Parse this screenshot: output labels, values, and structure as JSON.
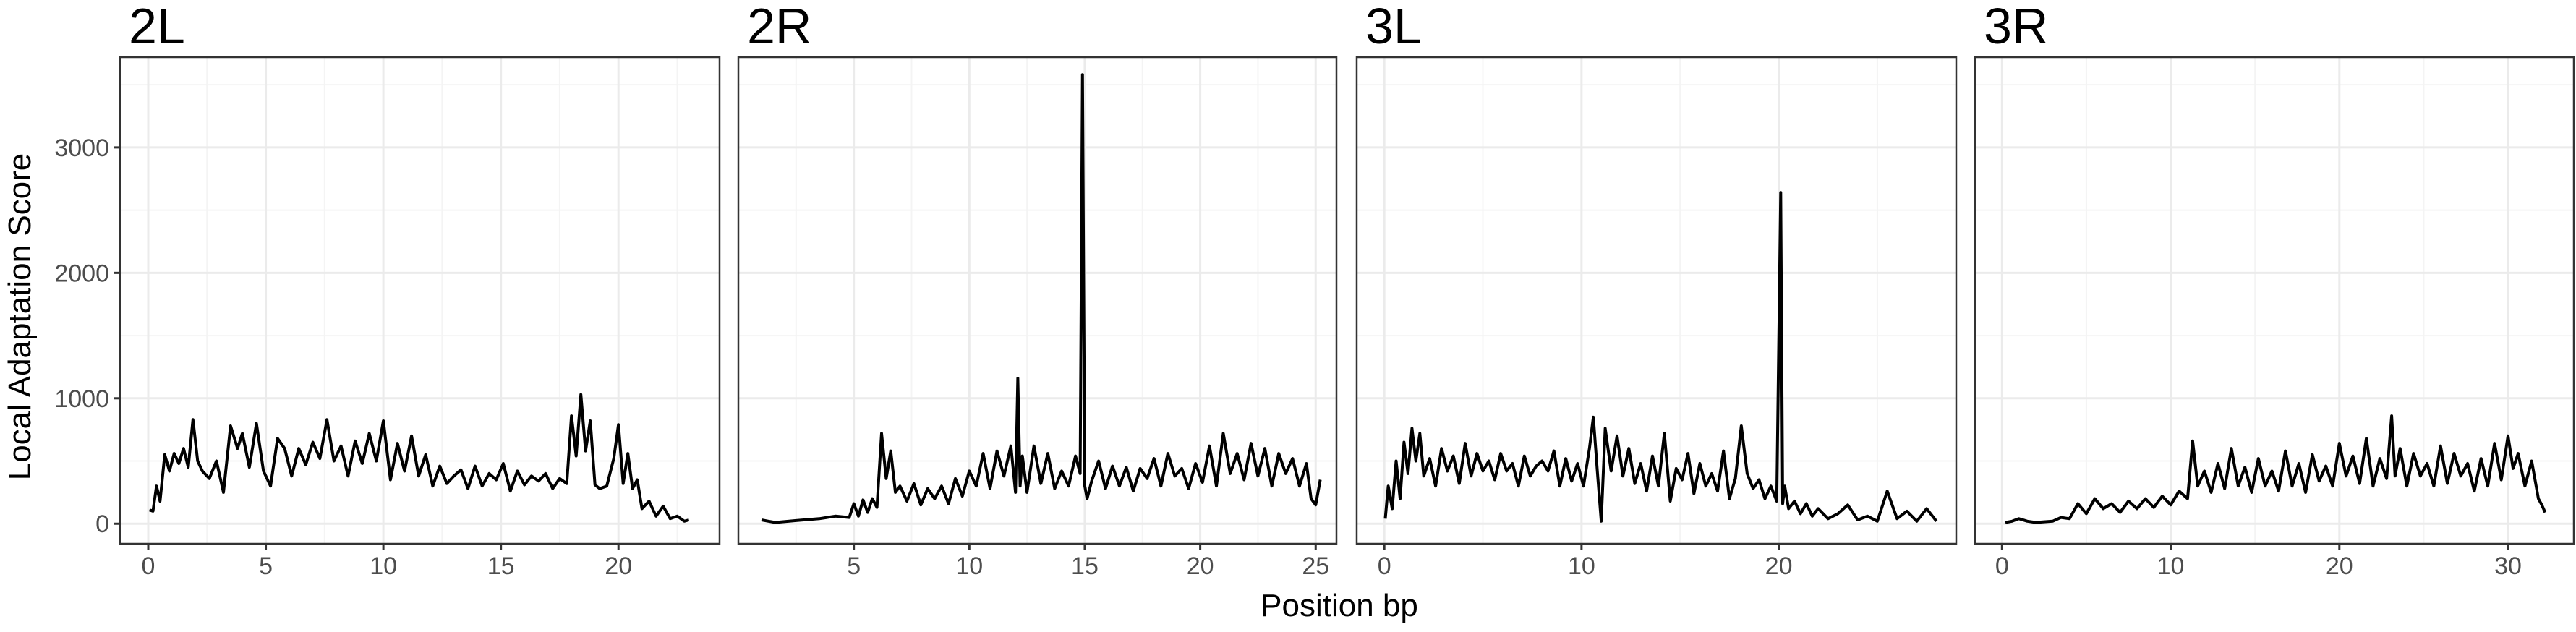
{
  "chart_data": {
    "type": "line",
    "ylabel": "Local Adaptation Score",
    "xlabel": "Position bp",
    "ylim": [
      -160,
      3720
    ],
    "y_ticks": [
      0,
      1000,
      2000,
      3000
    ],
    "grid": true,
    "panels": [
      {
        "title": "2L",
        "xlim": [
          -1.2,
          24.3
        ],
        "x_ticks": [
          0,
          5,
          10,
          15,
          20
        ],
        "series": [
          {
            "x": [
              0.05,
              0.2,
              0.35,
              0.5,
              0.7,
              0.9,
              1.1,
              1.3,
              1.5,
              1.7,
              1.9,
              2.1,
              2.3,
              2.6,
              2.9,
              3.2,
              3.5,
              3.8,
              4.0,
              4.3,
              4.6,
              4.9,
              5.2,
              5.5,
              5.8,
              6.1,
              6.4,
              6.7,
              7.0,
              7.3,
              7.6,
              7.9,
              8.2,
              8.5,
              8.8,
              9.1,
              9.4,
              9.7,
              10.0,
              10.3,
              10.6,
              10.9,
              11.2,
              11.5,
              11.8,
              12.1,
              12.4,
              12.7,
              13.0,
              13.3,
              13.6,
              13.9,
              14.2,
              14.5,
              14.8,
              15.1,
              15.4,
              15.7,
              16.0,
              16.3,
              16.6,
              16.9,
              17.2,
              17.5,
              17.8,
              18.0,
              18.2,
              18.4,
              18.6,
              18.8,
              19.0,
              19.2,
              19.5,
              19.8,
              20.0,
              20.2,
              20.4,
              20.6,
              20.8,
              21.0,
              21.3,
              21.6,
              21.9,
              22.2,
              22.5,
              22.8,
              23.0
            ],
            "y": [
              110,
              100,
              300,
              180,
              550,
              420,
              560,
              480,
              600,
              450,
              830,
              500,
              420,
              360,
              500,
              250,
              780,
              600,
              720,
              450,
              800,
              420,
              300,
              680,
              600,
              380,
              600,
              470,
              650,
              520,
              830,
              500,
              620,
              380,
              660,
              480,
              720,
              500,
              820,
              350,
              640,
              420,
              700,
              380,
              550,
              300,
              460,
              320,
              380,
              430,
              280,
              460,
              300,
              400,
              350,
              480,
              260,
              420,
              310,
              380,
              340,
              400,
              280,
              360,
              320,
              860,
              540,
              1030,
              580,
              820,
              310,
              280,
              300,
              520,
              790,
              320,
              560,
              280,
              350,
              120,
              180,
              60,
              140,
              40,
              60,
              20,
              30
            ]
          }
        ]
      },
      {
        "title": "2R",
        "xlim": [
          0,
          25.9
        ],
        "x_ticks": [
          5,
          10,
          15,
          20,
          25
        ],
        "series": [
          {
            "x": [
              1.0,
              1.3,
              1.6,
              2.5,
              3.5,
              4.2,
              4.8,
              5.0,
              5.2,
              5.4,
              5.6,
              5.8,
              6.0,
              6.2,
              6.4,
              6.6,
              6.8,
              7.0,
              7.3,
              7.6,
              7.9,
              8.2,
              8.5,
              8.8,
              9.1,
              9.4,
              9.7,
              10.0,
              10.3,
              10.6,
              10.9,
              11.2,
              11.5,
              11.8,
              12.0,
              12.1,
              12.2,
              12.3,
              12.5,
              12.8,
              13.1,
              13.4,
              13.7,
              14.0,
              14.3,
              14.6,
              14.8,
              14.9,
              15.0,
              15.1,
              15.3,
              15.6,
              15.9,
              16.2,
              16.5,
              16.8,
              17.1,
              17.4,
              17.7,
              18.0,
              18.3,
              18.6,
              18.9,
              19.2,
              19.5,
              19.8,
              20.1,
              20.4,
              20.7,
              21.0,
              21.3,
              21.6,
              21.9,
              22.2,
              22.5,
              22.8,
              23.1,
              23.4,
              23.7,
              24.0,
              24.3,
              24.6,
              24.8,
              25.0,
              25.2
            ],
            "y": [
              30,
              20,
              10,
              25,
              40,
              60,
              50,
              160,
              60,
              190,
              90,
              200,
              130,
              720,
              360,
              580,
              250,
              300,
              180,
              320,
              150,
              280,
              200,
              300,
              160,
              360,
              220,
              420,
              300,
              560,
              280,
              580,
              380,
              620,
              250,
              1160,
              300,
              540,
              250,
              620,
              320,
              560,
              280,
              420,
              300,
              540,
              400,
              3580,
              300,
              200,
              340,
              500,
              280,
              460,
              300,
              450,
              260,
              440,
              360,
              520,
              300,
              560,
              380,
              440,
              280,
              480,
              330,
              620,
              300,
              720,
              400,
              560,
              350,
              640,
              380,
              600,
              300,
              560,
              400,
              520,
              300,
              480,
              200,
              150,
              350
            ]
          }
        ]
      },
      {
        "title": "3L",
        "xlim": [
          -1.4,
          29.0
        ],
        "x_ticks": [
          0,
          10,
          20
        ],
        "series": [
          {
            "x": [
              0.05,
              0.2,
              0.4,
              0.6,
              0.8,
              1.0,
              1.2,
              1.4,
              1.6,
              1.8,
              2.0,
              2.3,
              2.6,
              2.9,
              3.2,
              3.5,
              3.8,
              4.1,
              4.4,
              4.7,
              5.0,
              5.3,
              5.6,
              5.9,
              6.2,
              6.5,
              6.8,
              7.1,
              7.4,
              7.7,
              8.0,
              8.3,
              8.6,
              8.9,
              9.2,
              9.5,
              9.8,
              10.1,
              10.4,
              10.6,
              10.8,
              11.0,
              11.2,
              11.5,
              11.8,
              12.1,
              12.4,
              12.7,
              13.0,
              13.3,
              13.6,
              13.9,
              14.2,
              14.5,
              14.8,
              15.1,
              15.4,
              15.7,
              16.0,
              16.3,
              16.6,
              16.9,
              17.2,
              17.5,
              17.8,
              18.1,
              18.4,
              18.7,
              19.0,
              19.3,
              19.6,
              19.9,
              20.1,
              20.2,
              20.3,
              20.5,
              20.8,
              21.1,
              21.4,
              21.7,
              22.0,
              22.5,
              23.0,
              23.5,
              24.0,
              24.5,
              25.0,
              25.5,
              26.0,
              26.5,
              27.0,
              27.5,
              28.0
            ],
            "y": [
              40,
              300,
              120,
              500,
              200,
              650,
              400,
              760,
              500,
              720,
              380,
              520,
              300,
              600,
              420,
              540,
              320,
              640,
              380,
              560,
              420,
              500,
              350,
              560,
              420,
              480,
              300,
              540,
              380,
              460,
              500,
              420,
              580,
              300,
              520,
              340,
              480,
              300,
              600,
              850,
              420,
              20,
              760,
              420,
              700,
              380,
              600,
              320,
              480,
              260,
              540,
              300,
              720,
              180,
              440,
              350,
              560,
              240,
              480,
              300,
              400,
              260,
              580,
              200,
              360,
              780,
              400,
              280,
              350,
              200,
              300,
              180,
              2640,
              160,
              300,
              120,
              180,
              80,
              160,
              60,
              120,
              40,
              80,
              150,
              30,
              60,
              20,
              260,
              40,
              100,
              20,
              120,
              20
            ]
          }
        ]
      },
      {
        "title": "3R",
        "xlim": [
          -1.6,
          33.9
        ],
        "x_ticks": [
          0,
          10,
          20,
          30
        ],
        "series": [
          {
            "x": [
              0.2,
              0.6,
              1.0,
              1.5,
              2.0,
              3.0,
              3.5,
              4.0,
              4.5,
              5.0,
              5.5,
              6.0,
              6.5,
              7.0,
              7.5,
              8.0,
              8.5,
              9.0,
              9.5,
              10.0,
              10.5,
              11.0,
              11.3,
              11.6,
              12.0,
              12.4,
              12.8,
              13.2,
              13.6,
              14.0,
              14.4,
              14.8,
              15.2,
              15.6,
              16.0,
              16.4,
              16.8,
              17.2,
              17.6,
              18.0,
              18.4,
              18.8,
              19.2,
              19.6,
              20.0,
              20.4,
              20.8,
              21.2,
              21.6,
              22.0,
              22.4,
              22.8,
              23.1,
              23.3,
              23.6,
              24.0,
              24.4,
              24.8,
              25.2,
              25.6,
              26.0,
              26.4,
              26.8,
              27.2,
              27.6,
              28.0,
              28.4,
              28.8,
              29.2,
              29.6,
              30.0,
              30.3,
              30.6,
              31.0,
              31.4,
              31.8,
              32.0,
              32.2
            ],
            "y": [
              10,
              20,
              40,
              20,
              10,
              20,
              50,
              40,
              160,
              80,
              200,
              120,
              160,
              90,
              180,
              120,
              200,
              130,
              220,
              150,
              260,
              200,
              660,
              300,
              420,
              250,
              480,
              280,
              600,
              300,
              450,
              250,
              520,
              300,
              420,
              260,
              580,
              300,
              480,
              250,
              550,
              340,
              460,
              300,
              640,
              380,
              540,
              320,
              680,
              300,
              520,
              360,
              860,
              380,
              600,
              300,
              560,
              380,
              480,
              300,
              620,
              320,
              560,
              380,
              480,
              260,
              520,
              300,
              640,
              350,
              700,
              440,
              560,
              300,
              500,
              200,
              150,
              90
            ]
          }
        ]
      }
    ]
  }
}
